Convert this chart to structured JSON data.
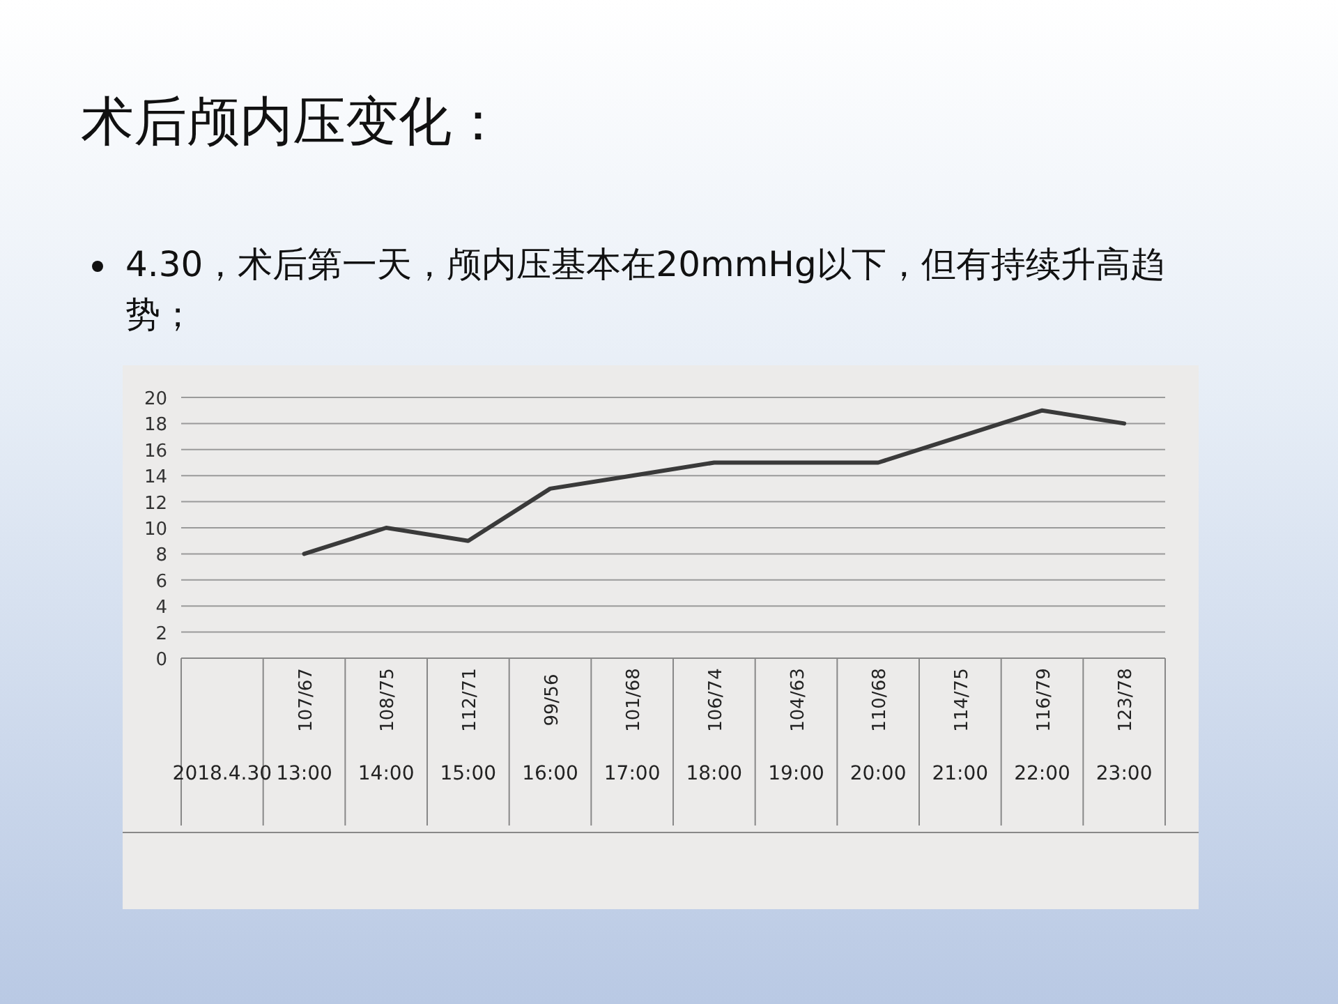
{
  "chart_data": {
    "type": "line",
    "title": "术后颅内压变化：",
    "subtitle": "4.30，术后第一天，颅内压基本在20mmHg以下，但有持续升高趋势；",
    "categories": [
      "2018.4.30",
      "13:00",
      "14:00",
      "15:00",
      "16:00",
      "17:00",
      "18:00",
      "19:00",
      "20:00",
      "21:00",
      "22:00",
      "23:00"
    ],
    "series": [
      {
        "color": "#3a3a3a",
        "values": [
          null,
          8,
          10,
          9,
          13,
          14,
          15,
          15,
          15,
          17,
          19,
          18
        ]
      }
    ],
    "ylim": [
      0,
      20
    ],
    "yticks": [
      0,
      2,
      4,
      6,
      8,
      10,
      12,
      14,
      16,
      18,
      20
    ],
    "grid": "y",
    "annotations": [
      "107/67",
      "108/75",
      "112/71",
      "99/56",
      "101/68",
      "106/74",
      "104/63",
      "110/68",
      "114/75",
      "116/79",
      "123/78"
    ]
  }
}
